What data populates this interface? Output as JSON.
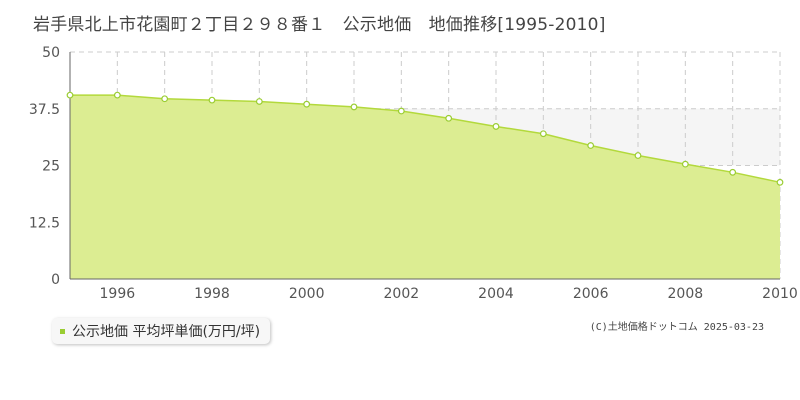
{
  "title": "岩手県北上市花園町２丁目２９８番１　公示地価　地価推移[1995-2010]",
  "legend": {
    "label": "公示地価 平均坪単価(万円/坪)"
  },
  "copyright": "(C)土地価格ドットコム 2025-03-23",
  "colors": {
    "fill": "#dced92",
    "line": "#b3d93c",
    "marker": "#9acd32",
    "grid": "#cccccc",
    "band": "#f5f5f5"
  },
  "chart_data": {
    "type": "area",
    "x": [
      1995,
      1996,
      1997,
      1998,
      1999,
      2000,
      2001,
      2002,
      2003,
      2004,
      2005,
      2006,
      2007,
      2008,
      2009,
      2010
    ],
    "series": [
      {
        "values": [
          40.5,
          40.5,
          39.7,
          39.4,
          39.1,
          38.5,
          37.9,
          37.0,
          35.4,
          33.6,
          32.0,
          29.4,
          27.2,
          25.3,
          23.5,
          21.3
        ]
      }
    ],
    "xticks": [
      "1996",
      "1998",
      "2000",
      "2002",
      "2004",
      "2006",
      "2008",
      "2010"
    ],
    "yticks": [
      "0",
      "12.5",
      "25",
      "37.5",
      "50"
    ],
    "xlim": [
      1995,
      2010
    ],
    "ylim": [
      0,
      50
    ],
    "grid": true,
    "legend_position": "bottom-left"
  }
}
